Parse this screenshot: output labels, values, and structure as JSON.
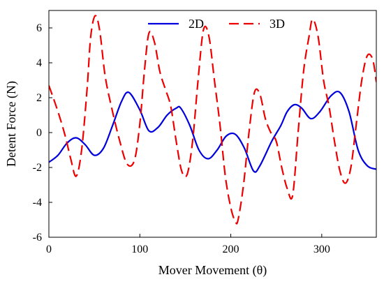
{
  "chart_data": {
    "type": "line",
    "xlabel": "Mover Movement (θ)",
    "ylabel": "Detent Force (N)",
    "xlim": [
      0,
      360
    ],
    "ylim": [
      -6,
      7
    ],
    "xticks": [
      0,
      100,
      200,
      300
    ],
    "yticks": [
      -6,
      -4,
      -2,
      0,
      2,
      4,
      6
    ],
    "grid": false,
    "legend_position": "top-center",
    "series": [
      {
        "name": "2D",
        "color": "#0000dd",
        "dash": "solid",
        "x": [
          0,
          10,
          20,
          30,
          40,
          50,
          60,
          70,
          80,
          88,
          100,
          110,
          120,
          130,
          140,
          145,
          155,
          165,
          175,
          185,
          195,
          205,
          215,
          225,
          232,
          245,
          255,
          262,
          270,
          278,
          288,
          298,
          310,
          320,
          330,
          340,
          350,
          360
        ],
        "y": [
          -1.7,
          -1.3,
          -0.6,
          -0.3,
          -0.7,
          -1.3,
          -0.9,
          0.4,
          1.8,
          2.3,
          1.3,
          0.1,
          0.3,
          1.0,
          1.4,
          1.4,
          0.4,
          -1.0,
          -1.5,
          -1.0,
          -0.2,
          -0.1,
          -0.9,
          -2.2,
          -1.9,
          -0.5,
          0.4,
          1.2,
          1.6,
          1.4,
          0.8,
          1.2,
          2.1,
          2.3,
          1.2,
          -1.0,
          -1.9,
          -2.1
        ]
      },
      {
        "name": "3D",
        "color": "#ee0000",
        "dash": "dashed",
        "x": [
          0,
          10,
          18,
          24,
          30,
          36,
          42,
          46,
          51,
          56,
          62,
          70,
          78,
          86,
          94,
          100,
          105,
          110,
          116,
          122,
          128,
          134,
          140,
          146,
          152,
          158,
          164,
          170,
          176,
          182,
          188,
          194,
          200,
          205,
          208,
          214,
          220,
          226,
          232,
          238,
          244,
          250,
          256,
          262,
          268,
          274,
          280,
          286,
          290,
          296,
          302,
          308,
          314,
          320,
          326,
          332,
          338,
          344,
          350,
          356,
          360
        ],
        "y": [
          2.7,
          1.2,
          -0.2,
          -1.5,
          -2.5,
          -1.0,
          2.5,
          5.5,
          6.7,
          5.8,
          3.2,
          1.2,
          -0.5,
          -1.8,
          -1.6,
          0.5,
          3.5,
          5.7,
          5.2,
          3.5,
          2.5,
          1.5,
          -0.5,
          -2.2,
          -2.4,
          -0.5,
          3.0,
          5.9,
          5.5,
          3.0,
          0.5,
          -2.5,
          -4.3,
          -5.1,
          -5.0,
          -3.0,
          0.0,
          2.3,
          2.2,
          0.8,
          0.0,
          -0.5,
          -2.0,
          -3.2,
          -3.6,
          0.0,
          3.5,
          5.5,
          6.5,
          5.5,
          3.0,
          1.5,
          -0.5,
          -2.2,
          -2.9,
          -2.0,
          0.5,
          3.0,
          4.4,
          4.2,
          2.9
        ]
      }
    ]
  }
}
